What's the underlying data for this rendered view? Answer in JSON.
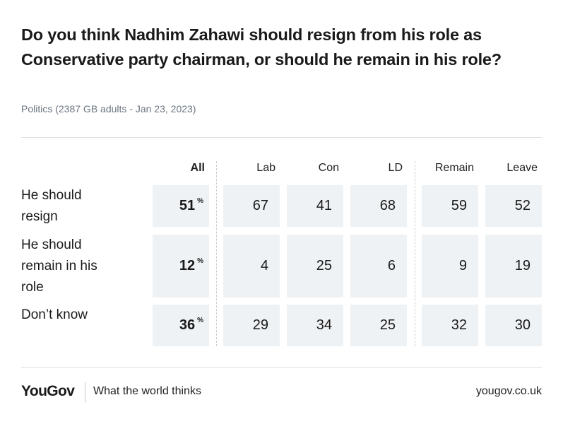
{
  "chart_data": {
    "type": "table",
    "title": "Do you think Nadhim Zahawi should resign from his role as Conservative party chairman, or should he remain in his role?",
    "subtitle": "Politics (2387 GB adults - Jan 23, 2023)",
    "unit": "%",
    "columns": [
      "All",
      "Lab",
      "Con",
      "LD",
      "Remain",
      "Leave"
    ],
    "rows": [
      {
        "label": "He should resign",
        "values": [
          51,
          67,
          41,
          68,
          59,
          52
        ]
      },
      {
        "label": "He should remain in his role",
        "values": [
          12,
          4,
          25,
          6,
          9,
          19
        ]
      },
      {
        "label": "Don’t know",
        "values": [
          36,
          29,
          34,
          25,
          32,
          30
        ]
      }
    ]
  },
  "footer": {
    "brand": "YouGov",
    "tagline": "What the world thinks",
    "url": "yougov.co.uk"
  },
  "colors": {
    "cell_background": "#eff2f4",
    "subtitle": "#6b7580",
    "rule": "#dcdfe3"
  }
}
